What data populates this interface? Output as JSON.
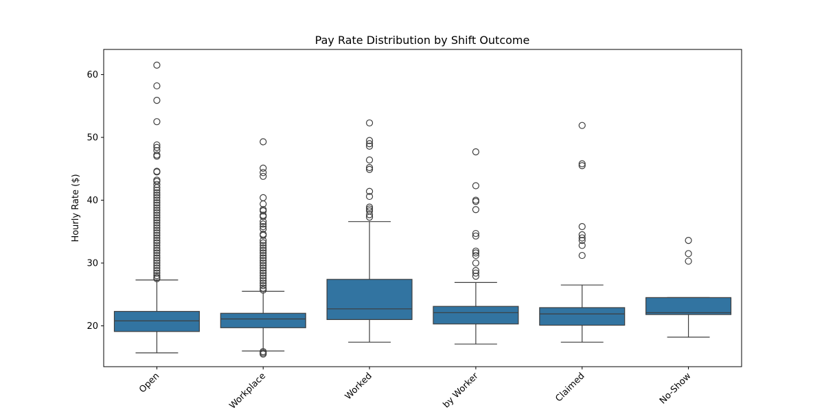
{
  "chart_data": {
    "type": "boxplot",
    "title": "Pay Rate Distribution by Shift Outcome",
    "xlabel": "",
    "ylabel": "Hourly Rate ($)",
    "ylim": [
      13.5,
      64
    ],
    "yticks": [
      20,
      30,
      40,
      50,
      60
    ],
    "grid": false,
    "legend": "none",
    "colors": {
      "box": "#3274a1",
      "line": "#3d3d3d",
      "axis": "#000000"
    },
    "categories": [
      "Open",
      "Cancelled by Workplace",
      "Worked",
      "Cancelled by Worker",
      "Claimed",
      "No-Show"
    ],
    "visible_labels": [
      "Open",
      "Workplace",
      "Worked",
      "by Worker",
      "Claimed",
      "No-Show"
    ],
    "boxes": [
      {
        "category": "Open",
        "whislo": 15.7,
        "q1": 19.1,
        "median": 20.8,
        "q3": 22.3,
        "whishi": 27.3,
        "outliers": [
          61.5,
          58.2,
          55.9,
          52.5,
          48.8,
          48.4,
          47.9,
          47.2,
          47.0,
          44.6,
          44.5,
          43.2,
          43.0,
          42.5,
          42.0,
          41.6,
          41.2,
          40.8,
          40.4,
          40.0,
          39.6,
          39.2,
          38.8,
          38.4,
          38.0,
          37.6,
          37.2,
          36.8,
          36.4,
          36.0,
          35.6,
          35.2,
          34.8,
          34.4,
          34.0,
          33.6,
          33.2,
          32.8,
          32.4,
          32.0,
          31.6,
          31.2,
          30.8,
          30.4,
          30.0,
          29.6,
          29.2,
          28.8,
          28.4,
          28.0,
          27.7,
          27.5
        ]
      },
      {
        "category": "Cancelled by Workplace",
        "whislo": 16.0,
        "q1": 19.7,
        "median": 21.1,
        "q3": 22.0,
        "whishi": 25.5,
        "outliers": [
          49.3,
          45.1,
          44.4,
          43.8,
          40.4,
          39.4,
          38.5,
          38.3,
          37.6,
          37.4,
          36.6,
          36.2,
          35.8,
          35.4,
          34.6,
          34.4,
          33.6,
          33.2,
          32.8,
          32.4,
          32.0,
          31.6,
          31.2,
          30.8,
          30.4,
          30.0,
          29.6,
          29.2,
          28.8,
          28.4,
          28.0,
          27.6,
          27.2,
          26.8,
          26.4,
          26.0,
          25.7,
          15.9,
          15.7,
          15.5
        ]
      },
      {
        "category": "Worked",
        "whislo": 17.4,
        "q1": 21.0,
        "median": 22.7,
        "q3": 27.4,
        "whishi": 36.6,
        "outliers": [
          52.3,
          49.5,
          49.0,
          48.6,
          46.4,
          45.2,
          44.9,
          41.4,
          40.6,
          38.9,
          38.6,
          38.3,
          37.7,
          37.3
        ]
      },
      {
        "category": "Cancelled by Worker",
        "whislo": 17.1,
        "q1": 20.3,
        "median": 22.1,
        "q3": 23.1,
        "whishi": 26.9,
        "outliers": [
          47.7,
          42.3,
          40.0,
          39.8,
          38.5,
          34.7,
          34.3,
          31.9,
          31.6,
          31.2,
          30.0,
          28.8,
          28.4,
          27.9
        ]
      },
      {
        "category": "Claimed",
        "whislo": 17.4,
        "q1": 20.1,
        "median": 21.9,
        "q3": 22.9,
        "whishi": 26.5,
        "outliers": [
          51.9,
          45.8,
          45.5,
          35.8,
          34.5,
          34.0,
          33.6,
          32.8,
          31.2
        ]
      },
      {
        "category": "No-Show",
        "whislo": 18.2,
        "q1": 21.8,
        "median": 22.1,
        "q3": 24.5,
        "whishi": 24.5,
        "outliers": [
          33.6,
          31.5,
          30.3
        ]
      }
    ]
  }
}
